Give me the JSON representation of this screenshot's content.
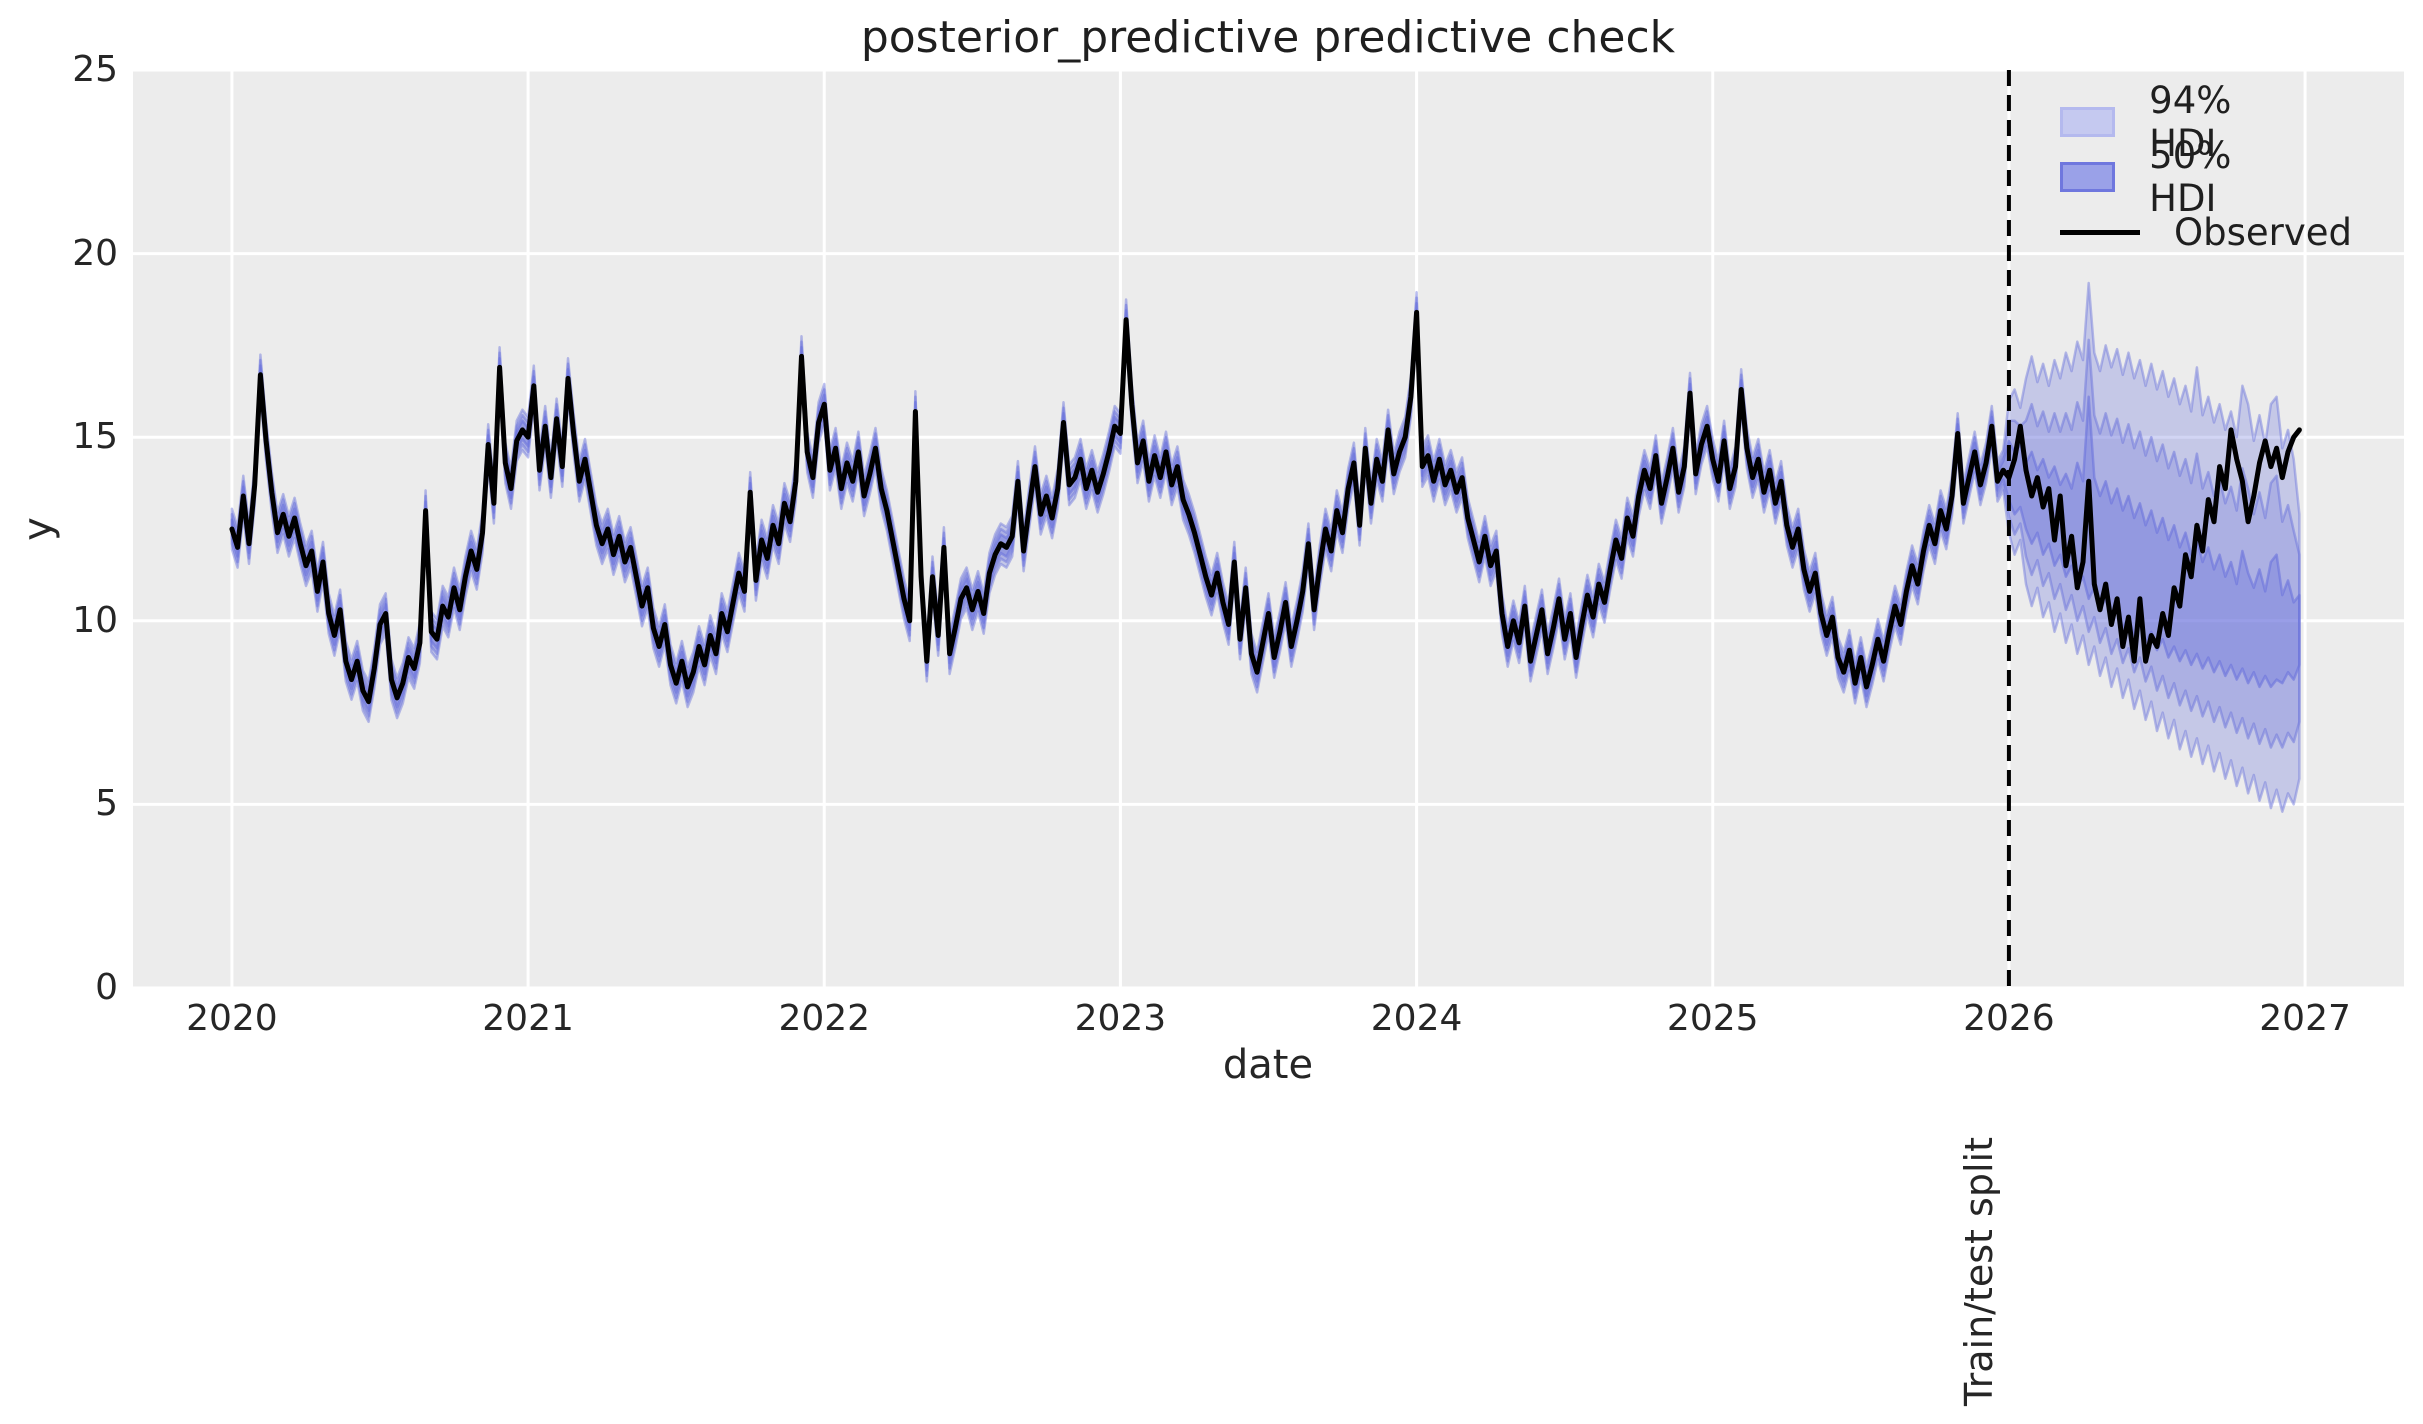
{
  "chart_data": {
    "type": "line",
    "title": "posterior_predictive predictive check",
    "xlabel": "date",
    "ylabel": "y",
    "xlim": [
      2019.666,
      2027.334
    ],
    "ylim": [
      0,
      25
    ],
    "xticks": [
      2020,
      2021,
      2022,
      2023,
      2024,
      2025,
      2026,
      2027
    ],
    "yticks": [
      0,
      5,
      10,
      15,
      20,
      25
    ],
    "grid": true,
    "legend_position": "upper right",
    "legend_labels": [
      "94% HDI",
      "50% HDI",
      "Observed"
    ],
    "annotation": {
      "label": "Train/test split",
      "x": 2026.0
    },
    "x_start": 2020.0,
    "points_per_year": 52,
    "split_x": 2026.0,
    "observed": [
      12.5,
      12.0,
      13.4,
      12.1,
      13.7,
      16.7,
      14.9,
      13.5,
      12.4,
      12.9,
      12.3,
      12.8,
      12.1,
      11.5,
      11.9,
      10.8,
      11.6,
      10.2,
      9.6,
      10.3,
      8.9,
      8.4,
      8.9,
      8.1,
      7.8,
      8.7,
      9.9,
      10.2,
      8.4,
      7.9,
      8.3,
      9.0,
      8.7,
      9.4,
      13.0,
      9.7,
      9.5,
      10.4,
      10.1,
      10.9,
      10.3,
      11.2,
      11.9,
      11.4,
      12.4,
      14.8,
      13.2,
      16.9,
      14.3,
      13.6,
      14.9,
      15.2,
      15.0,
      16.4,
      14.1,
      15.3,
      13.9,
      15.5,
      14.2,
      16.6,
      15.1,
      13.8,
      14.4,
      13.5,
      12.6,
      12.1,
      12.5,
      11.8,
      12.3,
      11.6,
      12.0,
      11.2,
      10.4,
      10.9,
      9.8,
      9.3,
      9.9,
      8.8,
      8.3,
      8.9,
      8.2,
      8.6,
      9.3,
      8.8,
      9.6,
      9.1,
      10.2,
      9.7,
      10.5,
      11.3,
      10.8,
      13.5,
      11.1,
      12.2,
      11.7,
      12.6,
      12.1,
      13.2,
      12.7,
      13.8,
      17.2,
      14.6,
      13.9,
      15.4,
      15.9,
      14.1,
      14.7,
      13.6,
      14.3,
      13.8,
      14.6,
      13.4,
      14.0,
      14.7,
      13.6,
      13.0,
      12.2,
      11.4,
      10.6,
      10.0,
      15.7,
      11.2,
      8.9,
      11.2,
      9.6,
      12.0,
      9.1,
      9.8,
      10.6,
      10.9,
      10.3,
      10.8,
      10.2,
      11.3,
      11.8,
      12.1,
      12.0,
      12.3,
      13.8,
      11.9,
      13.1,
      14.2,
      12.9,
      13.4,
      12.8,
      13.6,
      15.4,
      13.7,
      13.9,
      14.4,
      13.6,
      14.1,
      13.5,
      14.0,
      14.6,
      15.3,
      15.1,
      18.2,
      15.9,
      14.3,
      14.9,
      13.8,
      14.5,
      13.9,
      14.6,
      13.7,
      14.2,
      13.3,
      12.9,
      12.4,
      11.8,
      11.2,
      10.7,
      11.3,
      10.5,
      9.9,
      11.6,
      9.5,
      10.9,
      9.1,
      8.6,
      9.4,
      10.2,
      9.0,
      9.7,
      10.5,
      9.3,
      10.0,
      10.8,
      12.1,
      10.3,
      11.5,
      12.5,
      11.9,
      13.0,
      12.4,
      13.6,
      14.3,
      12.6,
      14.7,
      13.2,
      14.4,
      13.8,
      15.2,
      14.0,
      14.6,
      15.0,
      16.1,
      18.4,
      14.2,
      14.5,
      13.8,
      14.4,
      13.7,
      14.1,
      13.5,
      13.9,
      12.8,
      12.2,
      11.6,
      12.3,
      11.5,
      11.9,
      10.2,
      9.3,
      10.0,
      9.4,
      10.4,
      8.9,
      9.6,
      10.3,
      9.1,
      9.8,
      10.6,
      9.5,
      10.2,
      9.0,
      9.9,
      10.7,
      10.1,
      11.0,
      10.5,
      11.4,
      12.2,
      11.7,
      12.8,
      12.3,
      13.4,
      14.1,
      13.6,
      14.5,
      13.2,
      13.9,
      14.7,
      13.5,
      14.2,
      16.2,
      14.0,
      14.8,
      15.3,
      14.4,
      13.8,
      14.9,
      13.6,
      14.2,
      16.3,
      14.7,
      13.9,
      14.4,
      13.5,
      14.1,
      13.2,
      13.8,
      12.6,
      12.0,
      12.5,
      11.4,
      10.8,
      11.3,
      10.2,
      9.6,
      10.1,
      9.0,
      8.6,
      9.2,
      8.3,
      9.0,
      8.2,
      8.8,
      9.5,
      8.9,
      9.7,
      10.4,
      9.9,
      10.8,
      11.5,
      11.0,
      11.9,
      12.6,
      12.1,
      13.0,
      12.5,
      13.4,
      15.1,
      13.2,
      13.9,
      14.6,
      13.7,
      14.3,
      15.3,
      13.8,
      14.1,
      13.9,
      14.4,
      15.3,
      14.1,
      13.4,
      13.9,
      13.1,
      13.6,
      12.2,
      13.4,
      11.5,
      12.3,
      10.9,
      11.6,
      13.8,
      11.0,
      10.3,
      11.0,
      9.9,
      10.6,
      9.3,
      10.1,
      8.9,
      10.6,
      8.9,
      9.6,
      9.3,
      10.2,
      9.6,
      10.9,
      10.4,
      11.8,
      11.2,
      12.6,
      11.9,
      13.3,
      12.7,
      14.2,
      13.6,
      15.2,
      14.4,
      13.8,
      12.7,
      13.4,
      14.3,
      14.9,
      14.2,
      14.7,
      13.9,
      14.6,
      15.0,
      15.2
    ],
    "train_hdi": {
      "hdi94_halfwidth": 0.55,
      "hdi50_halfwidth": 0.25,
      "mid_halfwidth": 0.4
    },
    "forecast": {
      "x_start": 2026.0,
      "hdi94_upper": [
        16.0,
        16.3,
        15.8,
        16.6,
        17.2,
        16.5,
        17.0,
        16.4,
        17.1,
        16.6,
        17.3,
        16.8,
        17.6,
        17.1,
        19.2,
        17.3,
        16.8,
        17.5,
        16.9,
        17.4,
        16.7,
        17.3,
        16.6,
        17.1,
        16.4,
        17.0,
        16.3,
        16.8,
        16.1,
        16.6,
        15.9,
        16.4,
        15.7,
        16.9,
        15.6,
        16.1,
        15.4,
        15.9,
        15.2,
        15.7,
        15.0,
        16.4,
        15.9,
        14.9,
        15.6,
        14.8,
        15.9,
        16.1,
        14.7,
        15.2,
        14.4,
        12.9
      ],
      "hdi94_lower": [
        12.4,
        11.8,
        12.2,
        11.0,
        10.4,
        10.9,
        10.1,
        10.5,
        9.7,
        10.2,
        9.4,
        9.9,
        9.1,
        9.6,
        8.8,
        9.3,
        8.5,
        9.0,
        8.2,
        8.7,
        7.9,
        8.4,
        7.6,
        8.1,
        7.3,
        7.8,
        7.0,
        7.5,
        6.8,
        7.3,
        6.5,
        7.0,
        6.3,
        6.8,
        6.1,
        6.6,
        5.9,
        6.4,
        5.7,
        6.2,
        5.5,
        6.0,
        5.3,
        5.8,
        5.1,
        5.6,
        4.9,
        5.4,
        4.8,
        5.3,
        5.0,
        5.7
      ],
      "hdi50_upper": [
        14.9,
        14.6,
        14.8,
        14.3,
        14.6,
        14.1,
        14.4,
        13.9,
        14.2,
        13.7,
        14.0,
        13.6,
        14.3,
        13.8,
        16.1,
        13.9,
        13.4,
        13.8,
        13.2,
        13.6,
        13.0,
        13.4,
        12.8,
        13.2,
        12.6,
        13.0,
        12.4,
        12.8,
        12.2,
        12.6,
        12.0,
        12.4,
        11.8,
        12.2,
        11.6,
        12.0,
        11.4,
        11.8,
        11.2,
        11.6,
        11.0,
        11.9,
        11.3,
        10.9,
        11.4,
        10.8,
        11.6,
        11.8,
        10.7,
        11.1,
        10.5,
        10.7
      ],
      "hdi50_lower": [
        13.3,
        12.9,
        13.1,
        12.5,
        12.1,
        12.4,
        11.8,
        12.1,
        11.5,
        11.8,
        11.2,
        11.5,
        10.9,
        11.2,
        10.6,
        10.9,
        10.3,
        10.6,
        10.0,
        10.3,
        9.8,
        10.1,
        9.6,
        9.9,
        9.4,
        9.7,
        9.2,
        9.5,
        9.0,
        9.3,
        8.9,
        9.2,
        8.8,
        9.1,
        8.7,
        9.0,
        8.6,
        8.9,
        8.5,
        8.8,
        8.4,
        8.7,
        8.3,
        8.6,
        8.2,
        8.5,
        8.2,
        8.4,
        8.3,
        8.6,
        8.4,
        8.8
      ]
    },
    "colors": {
      "band_base": "#6b73dc",
      "legend_94_fill": "#c5c9f0",
      "legend_94_edge": "#b4b9ee",
      "legend_50_fill": "#9aa1e8",
      "legend_50_edge": "#6f77de",
      "observed": "#000000",
      "split_line": "#000000",
      "plot_background": "#ececec",
      "gridline": "#ffffff",
      "text": "#262626"
    }
  }
}
